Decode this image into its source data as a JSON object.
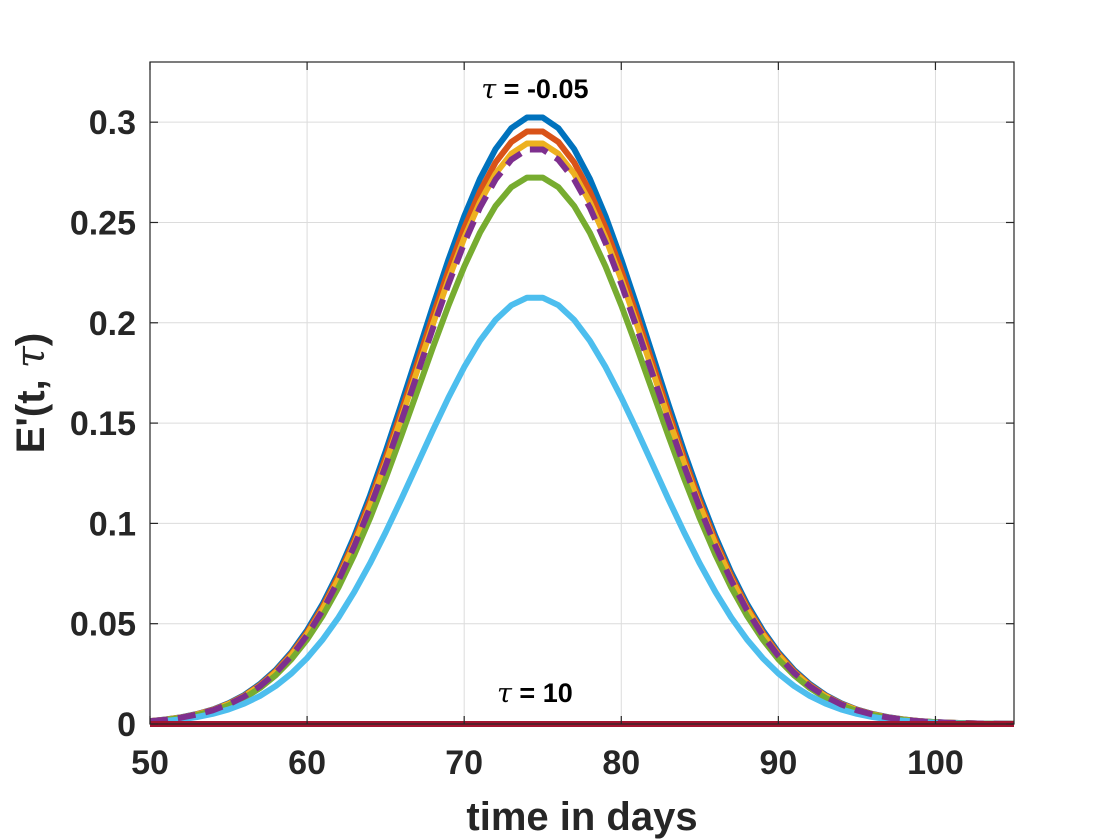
{
  "chart_data": {
    "type": "line",
    "title": "",
    "xlabel": "time in days",
    "ylabel_parts": [
      "E'(t, ",
      "τ",
      ")"
    ],
    "xlim": [
      50,
      105
    ],
    "ylim": [
      0,
      0.33
    ],
    "xticks": [
      50,
      60,
      70,
      80,
      90,
      100
    ],
    "xtick_labels": [
      "50",
      "60",
      "70",
      "80",
      "90",
      "100"
    ],
    "yticks": [
      0,
      0.05,
      0.1,
      0.15,
      0.2,
      0.25,
      0.3
    ],
    "ytick_labels": [
      "0",
      "0.05",
      "0.1",
      "0.15",
      "0.2",
      "0.25",
      "0.3"
    ],
    "grid": true,
    "legend": "none",
    "peak_day": 74.5,
    "spread_days": 7.5,
    "series": [
      {
        "name": "blue",
        "peak": 0.303,
        "color": "#0072BD",
        "style": "solid"
      },
      {
        "name": "red",
        "peak": 0.296,
        "color": "#D95319",
        "style": "solid"
      },
      {
        "name": "yellow",
        "peak": 0.29,
        "color": "#EDB120",
        "style": "solid"
      },
      {
        "name": "purple",
        "peak": 0.287,
        "color": "#7E2F8E",
        "style": "dashed"
      },
      {
        "name": "green",
        "peak": 0.273,
        "color": "#77AC30",
        "style": "solid"
      },
      {
        "name": "cyan",
        "peak": 0.213,
        "color": "#4DBEEE",
        "style": "solid"
      },
      {
        "name": "dark-red",
        "peak": 0.0,
        "color": "#A2142F",
        "style": "solid"
      }
    ],
    "draw_order": [
      "blue",
      "red",
      "yellow",
      "green",
      "cyan",
      "purple",
      "dark-red"
    ],
    "annotations": [
      {
        "id": "tau-top",
        "symbol": "τ",
        "text": " = -0.05",
        "x": 74.5,
        "y": 0.312
      },
      {
        "id": "tau-bottom",
        "symbol": "τ",
        "text": " = 10",
        "x": 74.5,
        "y": 0.011
      }
    ]
  }
}
